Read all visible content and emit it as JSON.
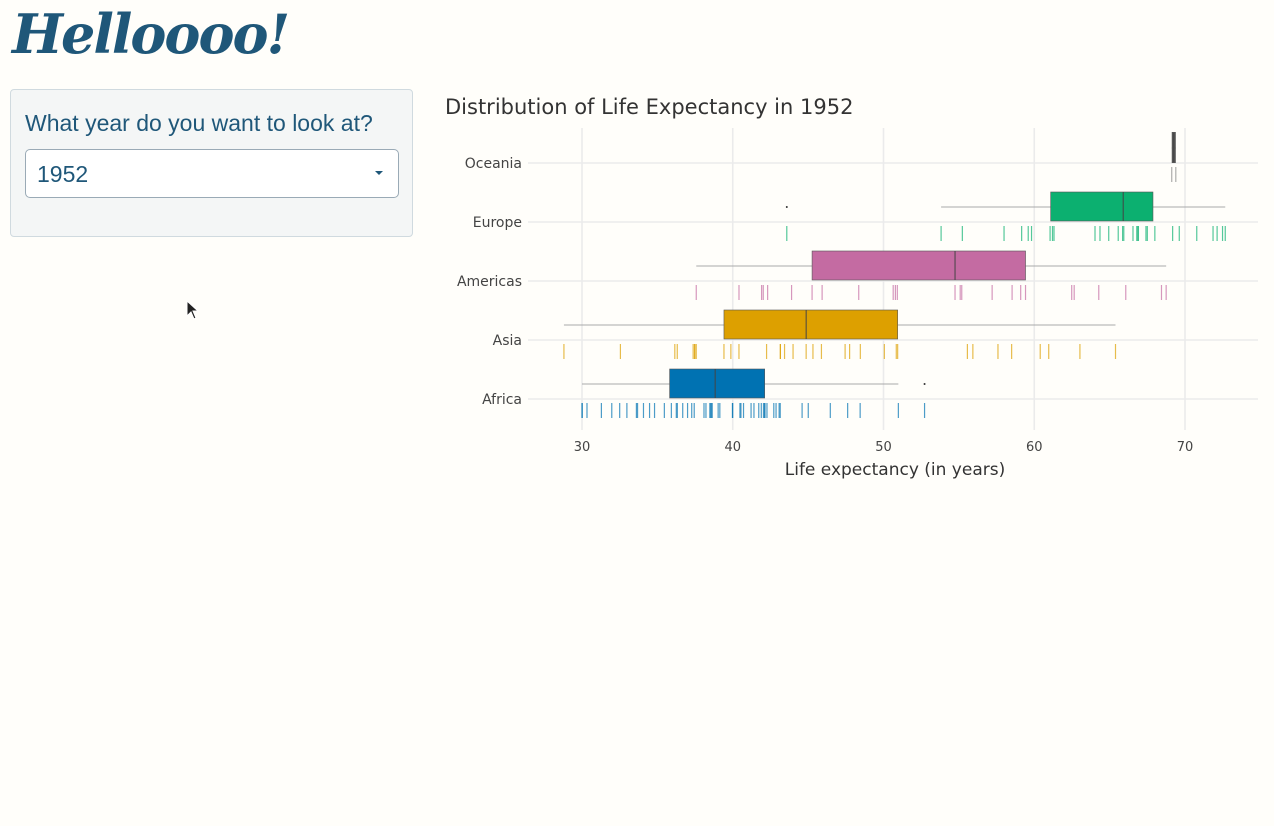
{
  "header": {
    "title": "Helloooo!"
  },
  "sidebar": {
    "label": "What year do you want to look at?",
    "year_select": {
      "value": "1952"
    }
  },
  "chart_data": {
    "type": "boxplot",
    "title": "Distribution of Life Expectancy in 1952",
    "xlabel": "Life expectancy (in years)",
    "ylabel": "",
    "xlim": [
      26.5,
      75
    ],
    "xticks": [
      30,
      40,
      50,
      60,
      70
    ],
    "grid": true,
    "categories": [
      "Oceania",
      "Europe",
      "Americas",
      "Asia",
      "Africa"
    ],
    "colors": {
      "Africa": "#0072B2",
      "Asia": "#DDA000",
      "Americas": "#C46BA2",
      "Europe": "#0CB070",
      "Oceania": "#8a8a8a"
    },
    "values": {
      "Oceania": [
        69.12,
        69.39
      ],
      "Europe": [
        55.23,
        66.8,
        68.0,
        53.82,
        59.6,
        61.21,
        66.87,
        70.78,
        66.55,
        67.41,
        67.5,
        65.86,
        64.03,
        72.49,
        66.91,
        65.94,
        59.164,
        72.13,
        72.67,
        61.31,
        59.82,
        61.05,
        57.996,
        64.36,
        65.57,
        64.94,
        71.86,
        69.62,
        43.585,
        69.18
      ],
      "Americas": [
        62.485,
        40.414,
        50.917,
        68.75,
        54.745,
        50.643,
        57.206,
        59.421,
        45.928,
        48.357,
        45.262,
        42.023,
        37.579,
        41.912,
        58.53,
        50.789,
        42.314,
        55.191,
        62.649,
        43.902,
        64.28,
        59.1,
        68.44,
        66.071,
        55.088
      ],
      "Asia": [
        28.801,
        50.939,
        37.484,
        39.417,
        44.0,
        60.96,
        37.373,
        37.468,
        44.869,
        45.32,
        65.39,
        63.03,
        43.158,
        50.056,
        47.453,
        55.565,
        55.928,
        48.463,
        42.244,
        36.319,
        36.157,
        37.578,
        43.436,
        47.752,
        39.875,
        60.396,
        57.593,
        45.883,
        58.5,
        50.848,
        40.412,
        43.16,
        32.548
      ],
      "Africa": [
        43.077,
        30.015,
        38.223,
        47.622,
        31.975,
        39.031,
        38.523,
        35.463,
        38.092,
        40.715,
        39.143,
        42.111,
        40.477,
        34.812,
        41.893,
        34.482,
        35.928,
        34.078,
        37.003,
        30.0,
        43.149,
        33.609,
        32.5,
        42.27,
        42.138,
        38.48,
        42.723,
        36.681,
        36.256,
        33.685,
        40.543,
        50.986,
        42.873,
        31.286,
        41.725,
        37.444,
        36.324,
        52.724,
        40.0,
        46.471,
        37.278,
        30.331,
        32.978,
        45.009,
        38.635,
        41.407,
        41.215,
        38.596,
        44.6,
        39.978,
        42.038,
        48.451
      ]
    }
  }
}
